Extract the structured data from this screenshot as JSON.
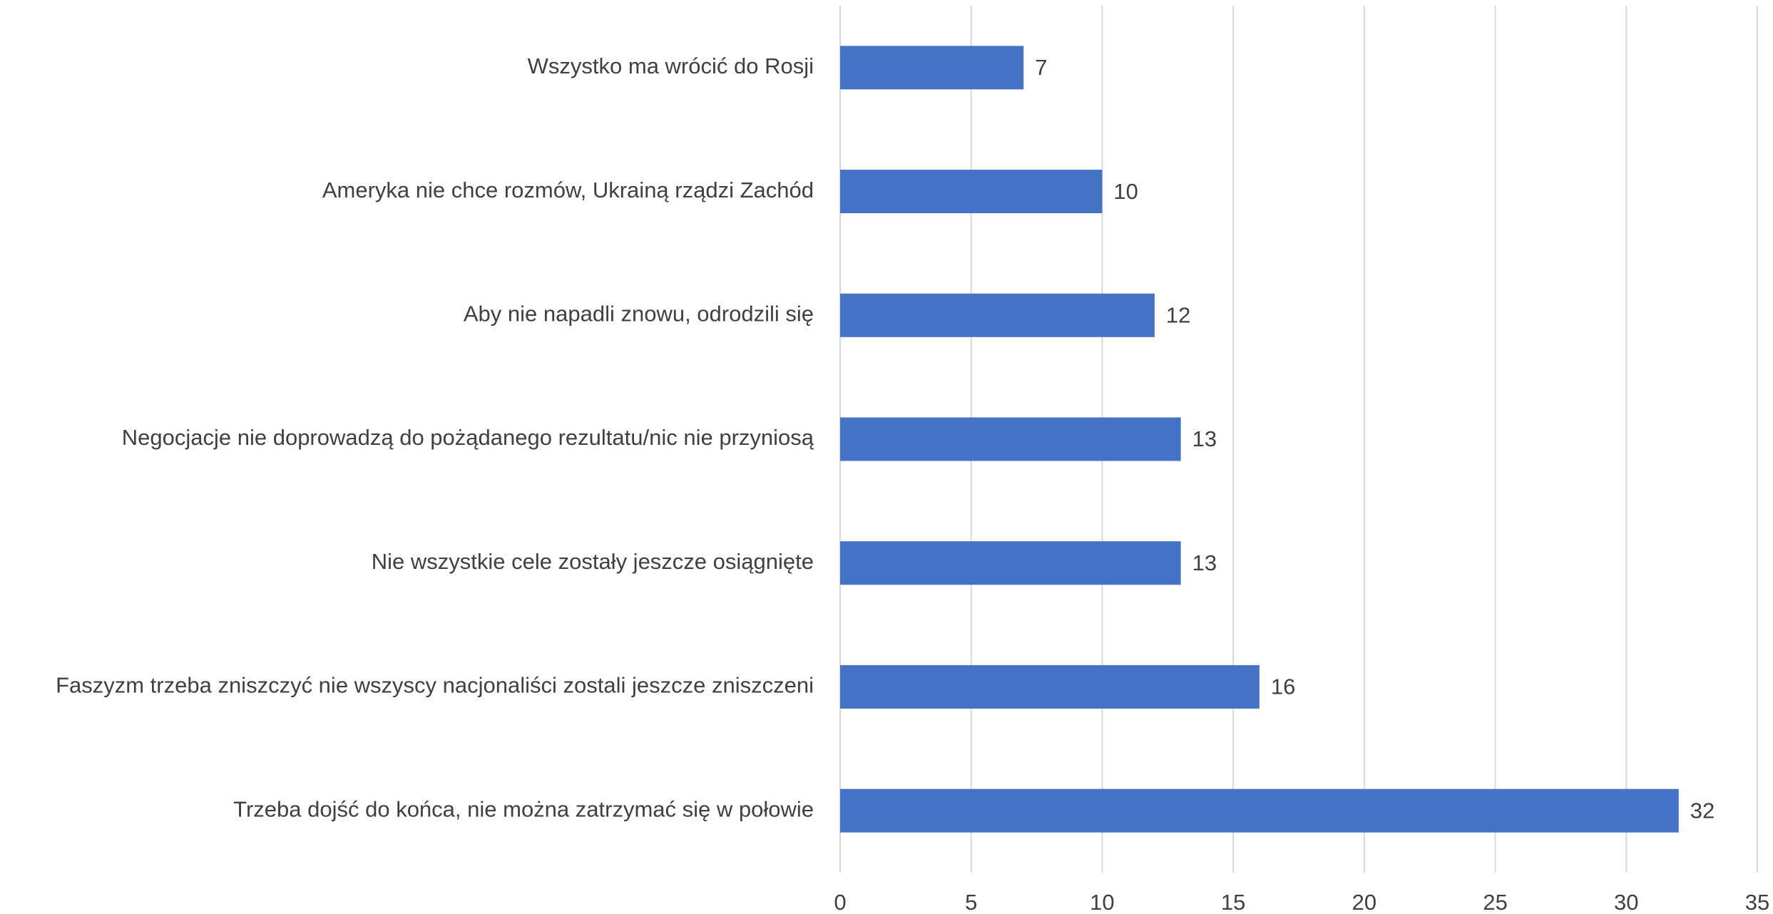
{
  "chart_data": {
    "type": "hbar",
    "categories": [
      "Wszystko ma wrócić do Rosji",
      "Ameryka nie chce rozmów, Ukrainą rządzi Zachód",
      "Aby nie napadli znowu, odrodzili się",
      "Negocjacje nie doprowadzą do pożądanego rezultatu/nic nie przyniosą",
      "Nie wszystkie cele zostały jeszcze osiągnięte",
      "Faszyzm trzeba zniszczyć nie wszyscy nacjonaliści zostali jeszcze zniszczeni",
      "Trzeba dojść do końca, nie można zatrzymać się w połowie"
    ],
    "values": [
      7,
      10,
      12,
      13,
      13,
      16,
      32
    ],
    "color": "#4472c4",
    "xlim": [
      0,
      35
    ],
    "xticks": [
      0,
      5,
      10,
      15,
      20,
      25,
      30,
      35
    ],
    "grid": true
  }
}
